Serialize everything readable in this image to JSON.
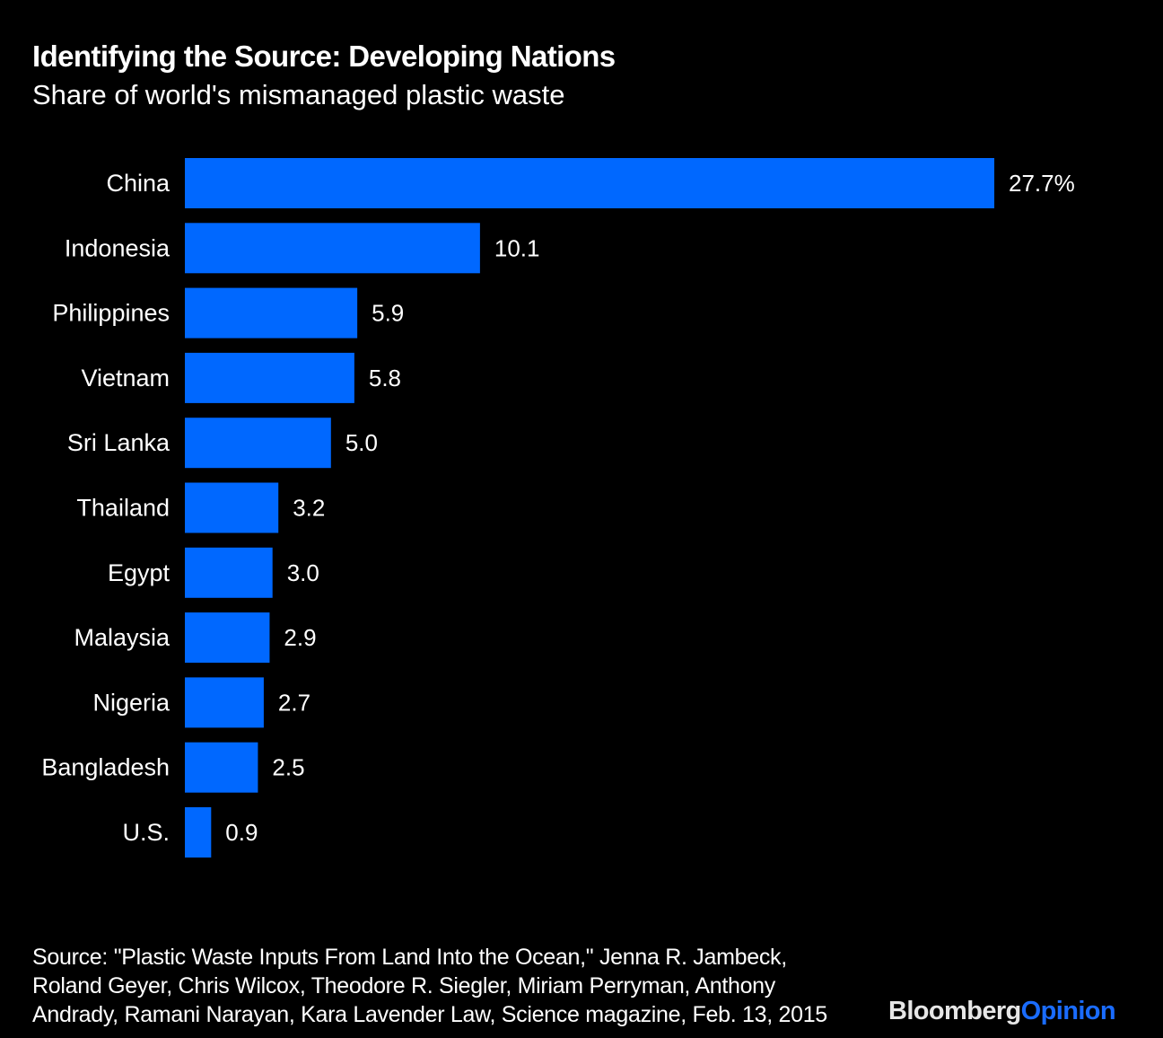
{
  "header": {
    "title": "Identifying the Source: Developing Nations",
    "subtitle": "Share of world's mismanaged plastic waste"
  },
  "chart_data": {
    "type": "bar",
    "orientation": "horizontal",
    "title": "Identifying the Source: Developing Nations",
    "subtitle": "Share of world's mismanaged plastic waste",
    "xlabel": "",
    "ylabel": "",
    "unit": "%",
    "categories": [
      "China",
      "Indonesia",
      "Philippines",
      "Vietnam",
      "Sri Lanka",
      "Thailand",
      "Egypt",
      "Malaysia",
      "Nigeria",
      "Bangladesh",
      "U.S."
    ],
    "values": [
      27.7,
      10.1,
      5.9,
      5.8,
      5.0,
      3.2,
      3.0,
      2.9,
      2.7,
      2.5,
      0.9
    ],
    "value_labels": [
      "27.7%",
      "10.1",
      "5.9",
      "5.8",
      "5.0",
      "3.2",
      "3.0",
      "2.9",
      "2.7",
      "2.5",
      "0.9"
    ],
    "xlim": [
      0,
      27.7
    ],
    "grid": false,
    "legend": "none",
    "bar_color": "#0068ff"
  },
  "footer": {
    "source_lines": [
      "Source: \"Plastic Waste Inputs From Land Into the Ocean,\" Jenna R. Jambeck,",
      "Roland Geyer, Chris Wilcox, Theodore R. Siegler, Miriam Perryman, Anthony",
      "Andrady, Ramani Narayan, Kara Lavender Law, Science magazine, Feb. 13, 2015"
    ],
    "logo_part1": "Bloomberg",
    "logo_part2": "Opinion"
  }
}
